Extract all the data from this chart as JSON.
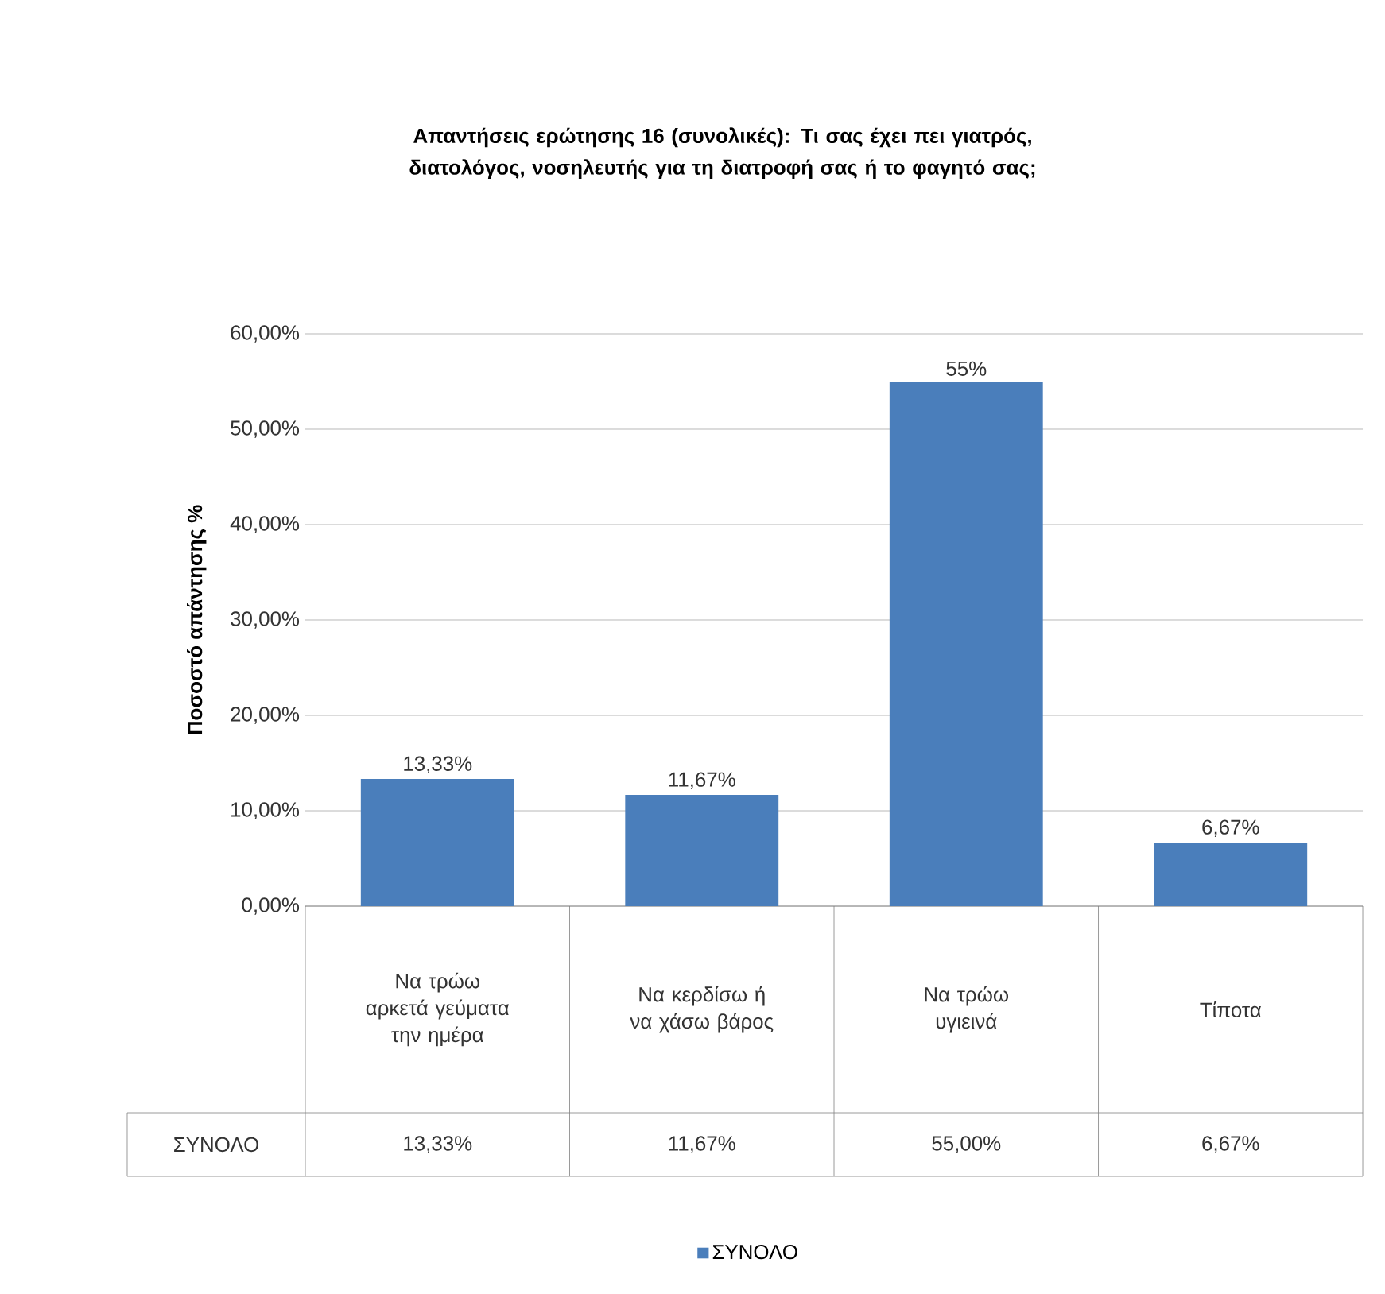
{
  "chart_data": {
    "type": "bar",
    "title": "Απαντήσεις ερώτησης 16 (συνολικές): Τι σας έχει πει γιατρός, διατολόγος, νοσηλευτής για τη διατροφή σας ή το φαγητό σας;",
    "ylabel": "Ποσοστό απάντησης %",
    "categories": [
      "Να τρώω αρκετά γεύματα την ημέρα",
      "Να κερδίσω ή να χάσω βάρος",
      "Να τρώω υγιεινά",
      "Τίποτα"
    ],
    "series": [
      {
        "name": "ΣΥΝΟΛΟ",
        "color": "#4a7ebb",
        "values": [
          13.33,
          11.67,
          55,
          6.67
        ],
        "value_labels": [
          "13,33%",
          "11,67%",
          "55%",
          "6,67%"
        ]
      }
    ],
    "ylim": [
      0,
      60
    ],
    "yticks": [
      {
        "value": 0,
        "label": "0,00%"
      },
      {
        "value": 10,
        "label": "10,00%"
      },
      {
        "value": 20,
        "label": "20,00%"
      },
      {
        "value": 30,
        "label": "30,00%"
      },
      {
        "value": 40,
        "label": "40,00%"
      },
      {
        "value": 50,
        "label": "50,00%"
      },
      {
        "value": 60,
        "label": "60,00%"
      }
    ],
    "grid": "y",
    "legend": "bottom",
    "annotations": [
      "13,33%",
      "11,67%",
      "55,00%",
      "6,67%"
    ]
  }
}
